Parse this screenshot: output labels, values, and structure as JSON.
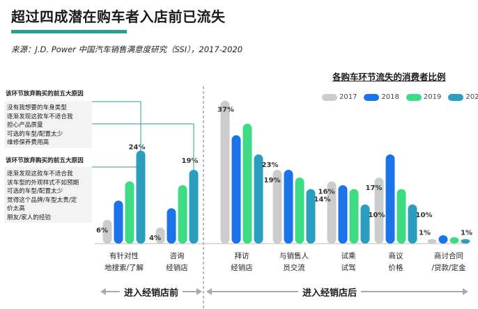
{
  "title": "超过四成潜在购车者入店前已流失",
  "source": "来源：J.D. Power 中国汽车销售满意度研究（SSI），2017-2020",
  "chart_subtitle": "各购车环节流失的消费者比例",
  "reasons_top": {
    "heading": "该环节放弃购买的前五大原因",
    "items": [
      "没有我想要的车身类型",
      "逐渐发现这款车不适合我",
      "担心产品质量",
      "可选的车型/配置太少",
      "维修保养费用高"
    ]
  },
  "reasons_bottom": {
    "heading": "该环节放弃购买的前五大原因",
    "items": [
      "逐渐发现这款车不适合我",
      "该车型的外观样式不如预期",
      "可选的车型/配置太少",
      "觉得这个品牌/车型太贵/定",
      "价太高",
      "朋友/家人的经验"
    ]
  },
  "phases": {
    "before": "进入经销店前",
    "after": "进入经销店后"
  },
  "colors": {
    "2017": "#cccccc",
    "2018": "#1a73e8",
    "2019": "#3ddc84",
    "2020": "#2b9ec0",
    "accent": "#2a9d8f"
  },
  "chart_data": {
    "type": "bar",
    "categories": [
      [
        "有针对性",
        "地搜索/了解"
      ],
      [
        "咨询",
        "经销店"
      ],
      [
        "拜访",
        "经销店"
      ],
      [
        "与销售人",
        "员交流"
      ],
      [
        "试乘",
        "试驾"
      ],
      [
        "商议",
        "价格"
      ],
      [
        "商讨合同",
        "/贷款/定金"
      ]
    ],
    "series": [
      {
        "name": "2017",
        "values": [
          6,
          4,
          37,
          19,
          16,
          17,
          1
        ]
      },
      {
        "name": "2018",
        "values": [
          11,
          9,
          28,
          19,
          15,
          23,
          2
        ]
      },
      {
        "name": "2019",
        "values": [
          16,
          15,
          31,
          17,
          14,
          14,
          1.5
        ]
      },
      {
        "name": "2020",
        "values": [
          24,
          19,
          23,
          14,
          10,
          10,
          1
        ]
      }
    ],
    "data_labels": [
      {
        "category": 0,
        "series": 0,
        "text": "6%"
      },
      {
        "category": 0,
        "series": 3,
        "text": "24%"
      },
      {
        "category": 1,
        "series": 0,
        "text": "4%"
      },
      {
        "category": 1,
        "series": 3,
        "text": "19%"
      },
      {
        "category": 2,
        "series": 0,
        "text": "37%"
      },
      {
        "category": 2,
        "series": 3,
        "text": "23%"
      },
      {
        "category": 3,
        "series": 0,
        "text": "19%"
      },
      {
        "category": 3,
        "series": 3,
        "text": "14%"
      },
      {
        "category": 4,
        "series": 0,
        "text": "16%"
      },
      {
        "category": 4,
        "series": 3,
        "text": "10%"
      },
      {
        "category": 5,
        "series": 0,
        "text": "17%"
      },
      {
        "category": 5,
        "series": 3,
        "text": "10%"
      },
      {
        "category": 6,
        "series": 0,
        "text": "1%"
      },
      {
        "category": 6,
        "series": 3,
        "text": "1%"
      }
    ],
    "ylim": [
      0,
      40
    ],
    "legend_position": "top-right"
  }
}
